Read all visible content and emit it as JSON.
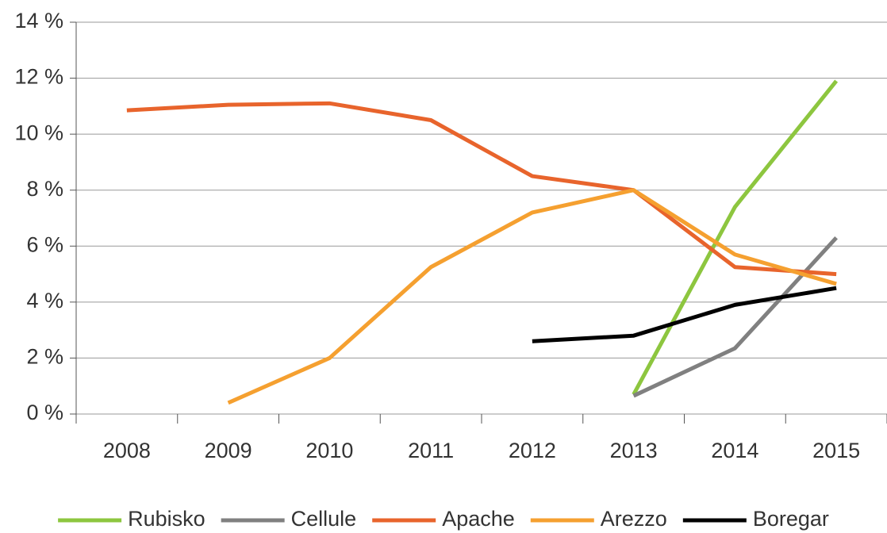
{
  "chart_data": {
    "type": "line",
    "categories": [
      "2008",
      "2009",
      "2010",
      "2011",
      "2012",
      "2013",
      "2014",
      "2015"
    ],
    "series": [
      {
        "name": "Rubisko",
        "color": "#8dc63f",
        "values": [
          null,
          null,
          null,
          null,
          null,
          0.7,
          7.4,
          11.9
        ]
      },
      {
        "name": "Cellule",
        "color": "#808080",
        "values": [
          null,
          null,
          null,
          null,
          null,
          0.65,
          2.35,
          6.3
        ]
      },
      {
        "name": "Apache",
        "color": "#e8642c",
        "values": [
          10.85,
          11.05,
          11.1,
          10.5,
          8.5,
          8.0,
          5.25,
          5.0
        ]
      },
      {
        "name": "Arezzo",
        "color": "#f5a030",
        "values": [
          null,
          0.4,
          2.0,
          5.25,
          7.2,
          8.0,
          5.7,
          4.65
        ]
      },
      {
        "name": "Boregar",
        "color": "#000000",
        "values": [
          null,
          null,
          null,
          null,
          2.6,
          2.8,
          3.9,
          4.5
        ]
      }
    ],
    "ylim": [
      0,
      14
    ],
    "yticks": [
      {
        "value": 0,
        "label": "0 %"
      },
      {
        "value": 2,
        "label": "2 %"
      },
      {
        "value": 4,
        "label": "4 %"
      },
      {
        "value": 6,
        "label": "6 %"
      },
      {
        "value": 8,
        "label": "8 %"
      },
      {
        "value": 10,
        "label": "10 %"
      },
      {
        "value": 12,
        "label": "12 %"
      },
      {
        "value": 14,
        "label": "14 %"
      }
    ],
    "grid": true,
    "legend": "bottom"
  }
}
